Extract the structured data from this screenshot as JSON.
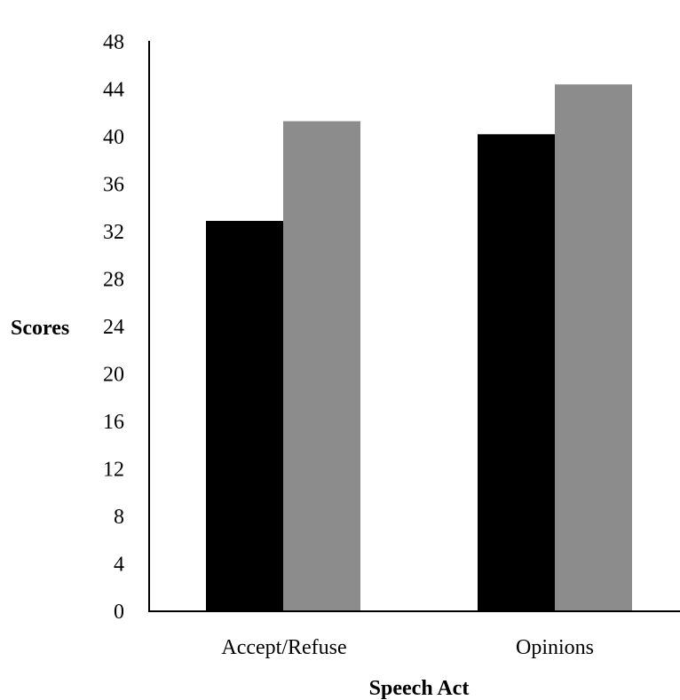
{
  "chart_data": {
    "type": "bar",
    "title": "",
    "xlabel": "Speech Act",
    "ylabel": "Scores",
    "categories": [
      "Accept/Refuse",
      "Opinions"
    ],
    "series": [
      {
        "values": [
          32.9,
          40.2
        ],
        "color": "#000000"
      },
      {
        "values": [
          41.3,
          44.4
        ],
        "color": "#8c8c8c"
      }
    ],
    "ylim": [
      0,
      48
    ],
    "yticks": [
      0,
      4,
      8,
      12,
      16,
      20,
      24,
      28,
      32,
      36,
      40,
      44,
      48
    ],
    "grid": false,
    "legend": "none"
  }
}
